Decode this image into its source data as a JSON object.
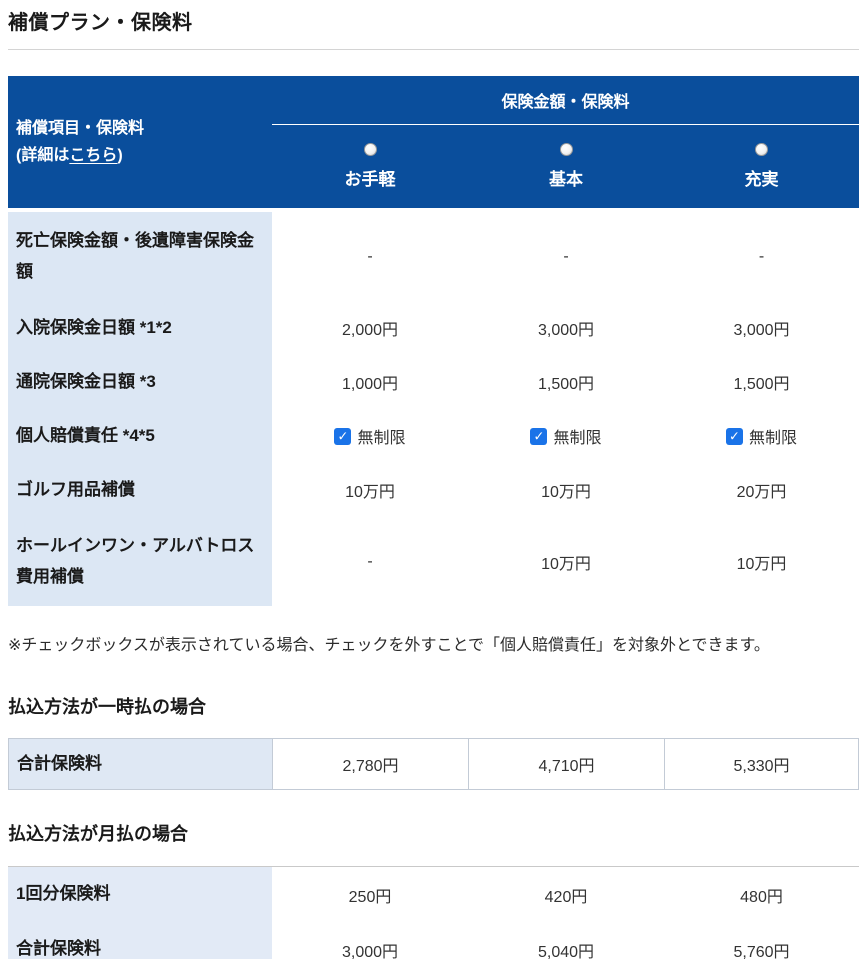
{
  "page": {
    "title": "補償プラン・保険料",
    "note": "※チェックボックスが表示されている場合、チェックを外すことで「個人賠償責任」を対象外とできます。"
  },
  "colors": {
    "header_blue": "#0a4e9c",
    "label_cell_bg": "#dce7f4",
    "checkbox_blue": "#1a73e8",
    "table_border": "#c3cbd6"
  },
  "main_table": {
    "corner": {
      "line1": "補償項目・保険料",
      "line2_prefix": "(詳細は",
      "link_label": "こちら",
      "line2_suffix": ")"
    },
    "group_header": "保険金額・保険料",
    "plans": [
      "お手軽",
      "基本",
      "充実"
    ],
    "rows": [
      {
        "label": "死亡保険金額・後遺障害保険金額",
        "values": [
          "-",
          "-",
          "-"
        ]
      },
      {
        "label": "入院保険金日額 *1*2",
        "values": [
          "2,000円",
          "3,000円",
          "3,000円"
        ]
      },
      {
        "label": "通院保険金日額 *3",
        "values": [
          "1,000円",
          "1,500円",
          "1,500円"
        ]
      },
      {
        "label": "個人賠償責任 *4*5",
        "values": [
          "無制限",
          "無制限",
          "無制限"
        ]
      },
      {
        "label": "ゴルフ用品補償",
        "values": [
          "10万円",
          "10万円",
          "20万円"
        ]
      },
      {
        "label": "ホールインワン・アルバトロス費用補償",
        "values": [
          "-",
          "10万円",
          "10万円"
        ]
      }
    ]
  },
  "lump_sum_section": {
    "heading": "払込方法が一時払の場合",
    "rows": [
      {
        "label": "合計保険料",
        "values": [
          "2,780円",
          "4,710円",
          "5,330円"
        ]
      }
    ]
  },
  "monthly_section": {
    "heading": "払込方法が月払の場合",
    "rows": [
      {
        "label": "1回分保険料",
        "values": [
          "250円",
          "420円",
          "480円"
        ]
      },
      {
        "label": "合計保険料",
        "values": [
          "3,000円",
          "5,040円",
          "5,760円"
        ]
      }
    ]
  }
}
